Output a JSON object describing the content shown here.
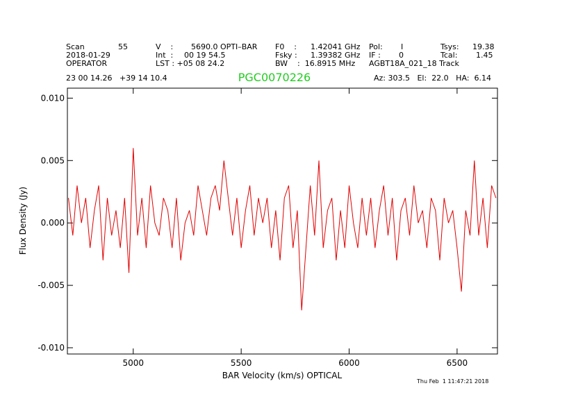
{
  "header": {
    "scan_label": "Scan",
    "scan": "55",
    "date": "2018-01-29",
    "operator": "OPERATOR",
    "v_label": "V    :",
    "v": "5690.0 OPTI–BAR",
    "int_label": "Int  :",
    "int": "00 19 54.5",
    "lst": "LST : +05 08 24.2",
    "f0_label": "F0    :",
    "f0": "1.42041 GHz",
    "fsky_label": "Fsky :",
    "fsky": "1.39382 GHz",
    "bw": "BW    :  16.8915 MHz",
    "pol_label": "Pol:",
    "pol": "I",
    "if_label": "IF :",
    "if": "0",
    "project": "AGBT18A_021_18 Track",
    "tsys_label": "Tsys:",
    "tsys": "19.38",
    "tcal_label": "Tcal:",
    "tcal": "1.45",
    "coords": "23 00 14.26   +39 14 10.4",
    "pointing": "Az: 303.5   El:  22.0   HA:  6.14",
    "timestamp": "Thu Feb  1 11:47:21 2018"
  },
  "chart_data": {
    "type": "line",
    "title": "PGC0070226",
    "xlabel": "BAR Velocity (km/s) OPTICAL",
    "ylabel": "Flux Density (Jy)",
    "x": [
      4700,
      4720,
      4740,
      4760,
      4780,
      4800,
      4820,
      4840,
      4860,
      4880,
      4900,
      4920,
      4940,
      4960,
      4980,
      5000,
      5020,
      5040,
      5060,
      5080,
      5100,
      5120,
      5140,
      5160,
      5180,
      5200,
      5220,
      5240,
      5260,
      5280,
      5300,
      5320,
      5340,
      5360,
      5380,
      5400,
      5420,
      5440,
      5460,
      5480,
      5500,
      5520,
      5540,
      5560,
      5580,
      5600,
      5620,
      5640,
      5660,
      5680,
      5700,
      5720,
      5740,
      5760,
      5780,
      5800,
      5820,
      5840,
      5860,
      5880,
      5900,
      5920,
      5940,
      5960,
      5980,
      6000,
      6020,
      6040,
      6060,
      6080,
      6100,
      6120,
      6140,
      6160,
      6180,
      6200,
      6220,
      6240,
      6260,
      6280,
      6300,
      6320,
      6340,
      6360,
      6380,
      6400,
      6420,
      6440,
      6460,
      6480,
      6500,
      6520,
      6540,
      6560,
      6580,
      6600,
      6620,
      6640,
      6660,
      6680
    ],
    "series": [
      {
        "name": "PGC0070226",
        "color": "#e00000",
        "values": [
          0.002,
          -0.001,
          0.003,
          0.0,
          0.002,
          -0.002,
          0.001,
          0.003,
          -0.003,
          0.002,
          -0.001,
          0.001,
          -0.002,
          0.002,
          -0.004,
          0.006,
          -0.001,
          0.002,
          -0.002,
          0.003,
          0.0,
          -0.001,
          0.002,
          0.001,
          -0.002,
          0.002,
          -0.003,
          0.0,
          0.001,
          -0.001,
          0.003,
          0.001,
          -0.001,
          0.002,
          0.003,
          0.001,
          0.005,
          0.002,
          -0.001,
          0.002,
          -0.002,
          0.001,
          0.003,
          -0.001,
          0.002,
          0.0,
          0.002,
          -0.002,
          0.001,
          -0.003,
          0.002,
          0.003,
          -0.002,
          0.001,
          -0.007,
          -0.002,
          0.003,
          -0.001,
          0.005,
          -0.002,
          0.001,
          0.002,
          -0.003,
          0.001,
          -0.002,
          0.003,
          0.0,
          -0.002,
          0.002,
          -0.001,
          0.002,
          -0.002,
          0.001,
          0.003,
          -0.001,
          0.002,
          -0.003,
          0.001,
          0.002,
          -0.001,
          0.003,
          0.0,
          0.001,
          -0.002,
          0.002,
          0.001,
          -0.003,
          0.002,
          0.0,
          0.001,
          -0.002,
          -0.0055,
          0.001,
          -0.001,
          0.005,
          -0.001,
          0.002,
          -0.002,
          0.003,
          0.002
        ]
      }
    ],
    "xlim": [
      4695,
      6687
    ],
    "ylim": [
      -0.0105,
      0.0108
    ],
    "xticks": [
      5000,
      5500,
      6000,
      6500
    ],
    "yticks": [
      {
        "value": -0.01,
        "label": "-0.010"
      },
      {
        "value": -0.005,
        "label": "-0.005"
      },
      {
        "value": 0,
        "label": "0.000"
      },
      {
        "value": 0.005,
        "label": "0.005"
      },
      {
        "value": 0.01,
        "label": "0.010"
      }
    ],
    "title_color": "#22cc22"
  }
}
